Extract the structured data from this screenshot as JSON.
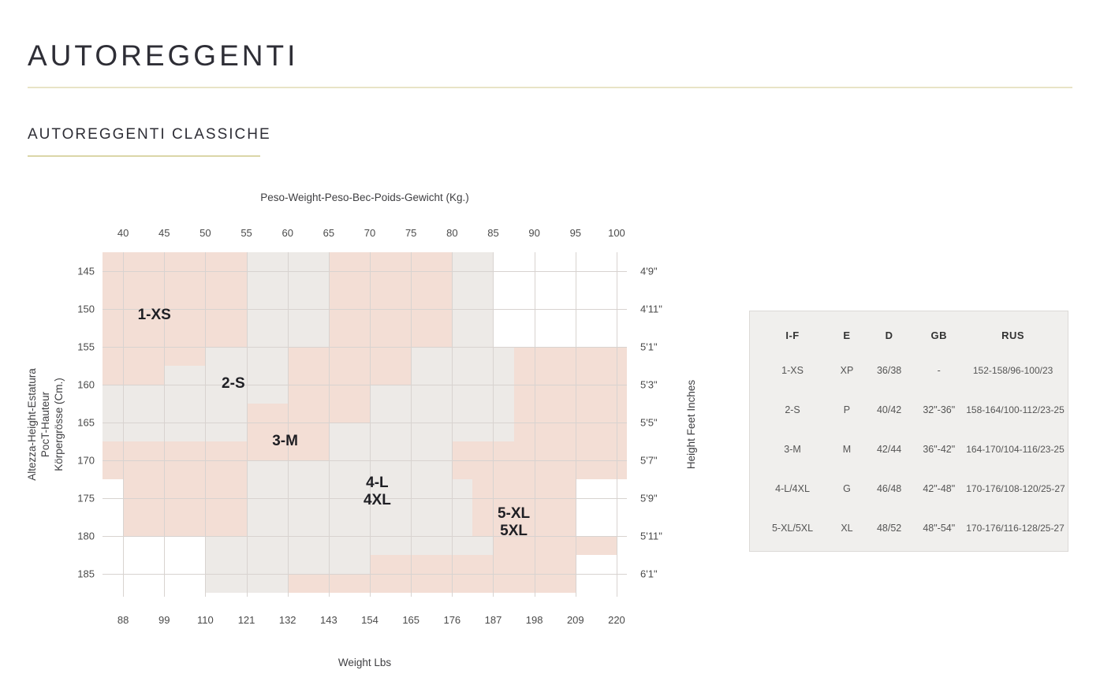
{
  "page": {
    "title": "AUTOREGGENTI",
    "subtitle": "AUTOREGGENTI CLASSICHE"
  },
  "chart_data": {
    "type": "heatmap",
    "top_axis_title": "Peso-Weight-Peso-Bec-Poids-Gewicht (Kg.)",
    "bottom_axis_title": "Weight Lbs",
    "left_axis_title_lines": [
      "Altezza-Height-Estatura",
      "PocT-Hauteur",
      "Körpergrösse (Cm.)"
    ],
    "right_axis_title": "Height Feet Inches",
    "x_ticks_kg": [
      40,
      45,
      50,
      55,
      60,
      65,
      70,
      75,
      80,
      85,
      90,
      95,
      100
    ],
    "x_ticks_lbs": [
      88,
      99,
      110,
      121,
      132,
      143,
      154,
      165,
      176,
      187,
      198,
      209,
      220
    ],
    "y_ticks_cm": [
      145,
      150,
      155,
      160,
      165,
      170,
      175,
      180,
      185
    ],
    "y_ticks_feet": [
      "4'9\"",
      "4'11\"",
      "5'1\"",
      "5'3\"",
      "5'5\"",
      "5'7\"",
      "5'9\"",
      "5'11\"",
      "6'1\""
    ],
    "x_domain_kg": [
      37.5,
      101.25
    ],
    "y_domain_cm": [
      142.5,
      188
    ],
    "grid": true,
    "colors": {
      "pink": "#f3ded5",
      "gray": "#edeae7",
      "grid_line": "#d8d3d0"
    },
    "regions": [
      {
        "color": "pink",
        "kg": [
          37.5,
          55
        ],
        "cm": [
          142.5,
          155
        ]
      },
      {
        "color": "pink",
        "kg": [
          37.5,
          50
        ],
        "cm": [
          155,
          157.5
        ]
      },
      {
        "color": "pink",
        "kg": [
          37.5,
          45
        ],
        "cm": [
          157.5,
          160
        ]
      },
      {
        "color": "pink",
        "kg": [
          65,
          80
        ],
        "cm": [
          142.5,
          155
        ]
      },
      {
        "color": "pink",
        "kg": [
          60,
          75
        ],
        "cm": [
          155,
          160
        ]
      },
      {
        "color": "pink",
        "kg": [
          60,
          70
        ],
        "cm": [
          160,
          162.5
        ]
      },
      {
        "color": "pink",
        "kg": [
          55,
          70
        ],
        "cm": [
          162.5,
          165
        ]
      },
      {
        "color": "pink",
        "kg": [
          55,
          65
        ],
        "cm": [
          165,
          170
        ]
      },
      {
        "color": "pink",
        "kg": [
          37.5,
          55
        ],
        "cm": [
          167.5,
          172.5
        ]
      },
      {
        "color": "pink",
        "kg": [
          40,
          55
        ],
        "cm": [
          172.5,
          180
        ]
      },
      {
        "color": "pink",
        "kg": [
          87.5,
          101.25
        ],
        "cm": [
          155,
          172.5
        ]
      },
      {
        "color": "pink",
        "kg": [
          80,
          87.5
        ],
        "cm": [
          167.5,
          172.5
        ]
      },
      {
        "color": "pink",
        "kg": [
          82.5,
          95
        ],
        "cm": [
          172.5,
          180
        ]
      },
      {
        "color": "pink",
        "kg": [
          85,
          100
        ],
        "cm": [
          180,
          182.5
        ]
      },
      {
        "color": "pink",
        "kg": [
          70,
          95
        ],
        "cm": [
          182.5,
          185
        ]
      },
      {
        "color": "pink",
        "kg": [
          60,
          95
        ],
        "cm": [
          185,
          187.5
        ]
      },
      {
        "color": "gray",
        "kg": [
          55,
          65
        ],
        "cm": [
          142.5,
          155
        ]
      },
      {
        "color": "gray",
        "kg": [
          50,
          60
        ],
        "cm": [
          155,
          160
        ]
      },
      {
        "color": "gray",
        "kg": [
          45,
          50
        ],
        "cm": [
          157.5,
          160
        ]
      },
      {
        "color": "gray",
        "kg": [
          37.5,
          55
        ],
        "cm": [
          160,
          167.5
        ]
      },
      {
        "color": "gray",
        "kg": [
          55,
          60
        ],
        "cm": [
          160,
          162.5
        ]
      },
      {
        "color": "gray",
        "kg": [
          80,
          85
        ],
        "cm": [
          142.5,
          155
        ]
      },
      {
        "color": "gray",
        "kg": [
          75,
          87.5
        ],
        "cm": [
          155,
          160
        ]
      },
      {
        "color": "gray",
        "kg": [
          70,
          87.5
        ],
        "cm": [
          160,
          165
        ]
      },
      {
        "color": "gray",
        "kg": [
          65,
          87.5
        ],
        "cm": [
          165,
          167.5
        ]
      },
      {
        "color": "gray",
        "kg": [
          65,
          80
        ],
        "cm": [
          167.5,
          170
        ]
      },
      {
        "color": "gray",
        "kg": [
          55,
          80
        ],
        "cm": [
          170,
          172.5
        ]
      },
      {
        "color": "gray",
        "kg": [
          55,
          82.5
        ],
        "cm": [
          172.5,
          180
        ]
      },
      {
        "color": "gray",
        "kg": [
          50,
          85
        ],
        "cm": [
          180,
          182.5
        ]
      },
      {
        "color": "gray",
        "kg": [
          50,
          70
        ],
        "cm": [
          182.5,
          185
        ]
      },
      {
        "color": "gray",
        "kg": [
          50,
          60
        ],
        "cm": [
          185,
          187.5
        ]
      }
    ],
    "size_labels": [
      {
        "lines": [
          "1-XS"
        ],
        "kg": 43.8,
        "cm": 150.8
      },
      {
        "lines": [
          "2-S"
        ],
        "kg": 53.4,
        "cm": 159.9
      },
      {
        "lines": [
          "3-M"
        ],
        "kg": 59.7,
        "cm": 167.5
      },
      {
        "lines": [
          "4-L",
          "4XL"
        ],
        "kg": 70.9,
        "cm": 174.2
      },
      {
        "lines": [
          "5-XL",
          "5XL"
        ],
        "kg": 87.5,
        "cm": 178.2
      }
    ]
  },
  "size_table": {
    "headers": [
      "I-F",
      "E",
      "D",
      "GB",
      "RUS"
    ],
    "rows": [
      [
        "1-XS",
        "XP",
        "36/38",
        "-",
        "152-158/96-100/23"
      ],
      [
        "2-S",
        "P",
        "40/42",
        "32\"-36\"",
        "158-164/100-112/23-25"
      ],
      [
        "3-M",
        "M",
        "42/44",
        "36\"-42\"",
        "164-170/104-116/23-25"
      ],
      [
        "4-L/4XL",
        "G",
        "46/48",
        "42\"-48\"",
        "170-176/108-120/25-27"
      ],
      [
        "5-XL/5XL",
        "XL",
        "48/52",
        "48\"-54\"",
        "170-176/116-128/25-27"
      ]
    ]
  }
}
